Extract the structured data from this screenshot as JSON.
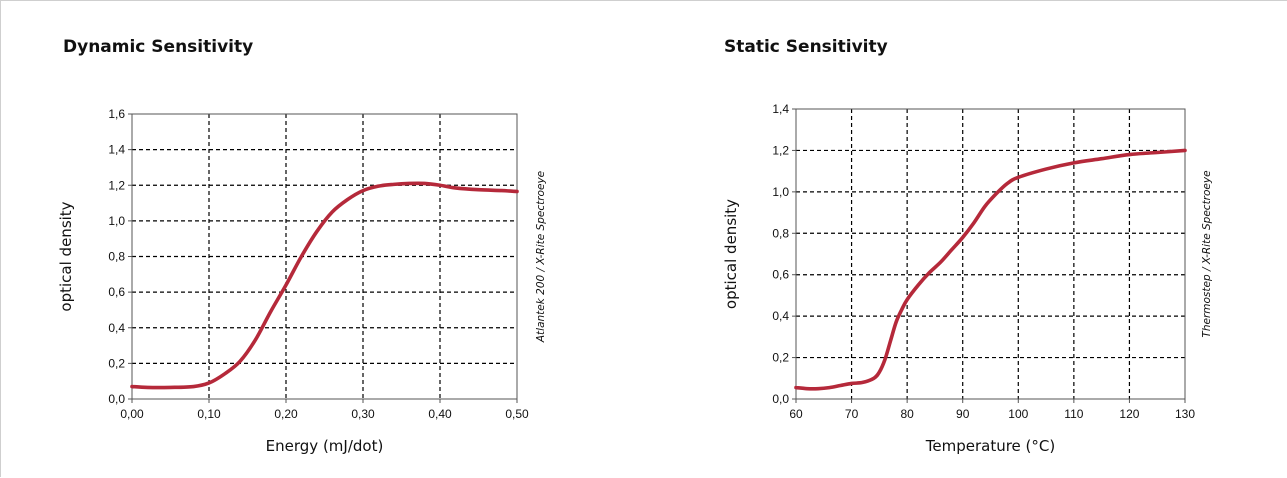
{
  "chart_data": [
    {
      "type": "line",
      "title": "Dynamic Sensitivity",
      "xlabel": "Energy (mJ/dot)",
      "ylabel": "optical density",
      "side_note": "Atlantek 200 / X-Rite Spectroeye",
      "xlim": [
        0,
        0.5
      ],
      "ylim": [
        0,
        1.6
      ],
      "x_ticks": [
        "0,00",
        "0,10",
        "0,20",
        "0,30",
        "0,40",
        "0,50"
      ],
      "y_ticks": [
        "0,0",
        "0,2",
        "0,4",
        "0,6",
        "0,8",
        "1,0",
        "1,2",
        "1,4",
        "1,6"
      ],
      "grid": "dashed",
      "line_color": "#b5293a",
      "series": [
        {
          "x": [
            0.0,
            0.02,
            0.05,
            0.08,
            0.1,
            0.12,
            0.14,
            0.16,
            0.18,
            0.2,
            0.22,
            0.24,
            0.26,
            0.28,
            0.3,
            0.32,
            0.34,
            0.36,
            0.38,
            0.4,
            0.42,
            0.45,
            0.48,
            0.5
          ],
          "y": [
            0.07,
            0.065,
            0.065,
            0.07,
            0.09,
            0.14,
            0.21,
            0.33,
            0.49,
            0.64,
            0.8,
            0.94,
            1.05,
            1.12,
            1.17,
            1.195,
            1.205,
            1.21,
            1.21,
            1.2,
            1.185,
            1.175,
            1.17,
            1.165
          ]
        }
      ]
    },
    {
      "type": "line",
      "title": "Static Sensitivity",
      "xlabel": "Temperature (°C)",
      "ylabel": "optical density",
      "side_note": "Thermostep / X-Rite Spectroeye",
      "xlim": [
        60,
        130
      ],
      "ylim": [
        0,
        1.4
      ],
      "x_ticks": [
        "60",
        "70",
        "80",
        "90",
        "100",
        "110",
        "120",
        "130"
      ],
      "y_ticks": [
        "0,0",
        "0,2",
        "0,4",
        "0,6",
        "0,8",
        "1,0",
        "1,2",
        "1,4"
      ],
      "grid": "dashed",
      "line_color": "#b5293a",
      "series": [
        {
          "x": [
            60,
            62,
            64,
            66,
            68,
            70,
            72,
            74,
            75,
            76,
            77,
            78,
            79,
            80,
            82,
            84,
            86,
            88,
            90,
            92,
            94,
            96,
            98,
            100,
            105,
            110,
            115,
            120,
            125,
            130
          ],
          "y": [
            0.055,
            0.05,
            0.05,
            0.055,
            0.065,
            0.075,
            0.08,
            0.1,
            0.13,
            0.19,
            0.28,
            0.37,
            0.43,
            0.48,
            0.55,
            0.61,
            0.66,
            0.72,
            0.78,
            0.85,
            0.93,
            0.99,
            1.04,
            1.07,
            1.11,
            1.14,
            1.16,
            1.18,
            1.19,
            1.2
          ]
        }
      ]
    }
  ]
}
